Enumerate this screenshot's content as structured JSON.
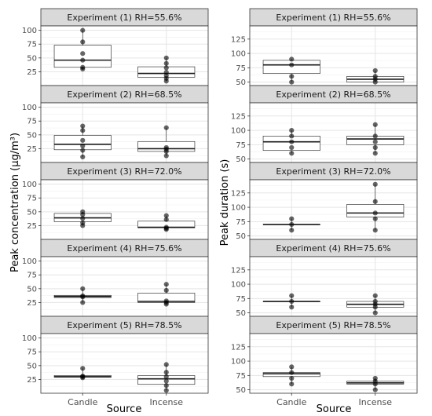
{
  "colors": {
    "strip_fill": "#d9d9d9",
    "strip_border": "#333333",
    "panel_border": "#333333",
    "grid_major": "#e5e5e5",
    "grid_minor": "#f2f2f2",
    "box_stroke": "#1a1a1a",
    "point": "#000000"
  },
  "chart_data": [
    {
      "type": "boxplot",
      "panel_group": "left",
      "ylabel": "Peak concentration (µg/m³)",
      "xlabel": "Source",
      "categories": [
        "Candle",
        "Incense"
      ],
      "ylim": [
        0,
        108
      ],
      "yticks": [
        25,
        50,
        75,
        100
      ],
      "grid": true,
      "facets": [
        {
          "title": "Experiment (1) RH=55.6%",
          "boxes": [
            {
              "category": "Candle",
              "lower": 30,
              "q1": 33,
              "median": 46,
              "q3": 73,
              "upper": 100
            },
            {
              "category": "Incense",
              "lower": 8,
              "q1": 15,
              "median": 22,
              "q3": 34,
              "upper": 50
            }
          ],
          "points": [
            {
              "category": "Candle",
              "values": [
                30,
                33,
                46,
                58,
                79,
                100
              ]
            },
            {
              "category": "Incense",
              "values": [
                8,
                13,
                18,
                24,
                32,
                40,
                50
              ]
            }
          ]
        },
        {
          "title": "Experiment (2) RH=68.5%",
          "boxes": [
            {
              "category": "Candle",
              "lower": 10,
              "q1": 23,
              "median": 33,
              "q3": 49,
              "upper": 66
            },
            {
              "category": "Incense",
              "lower": 12,
              "q1": 20,
              "median": 25,
              "q3": 38,
              "upper": 63
            }
          ],
          "points": [
            {
              "category": "Candle",
              "values": [
                10,
                22,
                30,
                40,
                58,
                66
              ]
            },
            {
              "category": "Incense",
              "values": [
                12,
                20,
                24,
                27,
                63
              ]
            }
          ]
        },
        {
          "title": "Experiment (3) RH=72.0%",
          "boxes": [
            {
              "category": "Candle",
              "lower": 25,
              "q1": 32,
              "median": 39,
              "q3": 47,
              "upper": 50
            },
            {
              "category": "Incense",
              "lower": 18,
              "q1": 21,
              "median": 22,
              "q3": 33,
              "upper": 43
            }
          ],
          "points": [
            {
              "category": "Candle",
              "values": [
                25,
                30,
                38,
                45,
                50
              ]
            },
            {
              "category": "Incense",
              "values": [
                18,
                20,
                22,
                36,
                43
              ]
            }
          ]
        },
        {
          "title": "Experiment (4) RH=75.6%",
          "boxes": [
            {
              "category": "Candle",
              "lower": 25,
              "q1": 34,
              "median": 36,
              "q3": 38,
              "upper": 50
            },
            {
              "category": "Incense",
              "lower": 22,
              "q1": 25,
              "median": 27,
              "q3": 42,
              "upper": 58
            }
          ],
          "points": [
            {
              "category": "Candle",
              "values": [
                25,
                35,
                37,
                50
              ]
            },
            {
              "category": "Incense",
              "values": [
                22,
                25,
                28,
                47,
                58
              ]
            }
          ]
        },
        {
          "title": "Experiment (5) RH=78.5%",
          "boxes": [
            {
              "category": "Candle",
              "lower": 28,
              "q1": 29,
              "median": 30,
              "q3": 32,
              "upper": 45
            },
            {
              "category": "Incense",
              "lower": 5,
              "q1": 16,
              "median": 26,
              "q3": 32,
              "upper": 52
            }
          ],
          "points": [
            {
              "category": "Candle",
              "values": [
                28,
                30,
                31,
                45
              ]
            },
            {
              "category": "Incense",
              "values": [
                5,
                14,
                22,
                30,
                38,
                52
              ]
            }
          ]
        }
      ]
    },
    {
      "type": "boxplot",
      "panel_group": "right",
      "ylabel": "Peak duration (s)",
      "xlabel": "Source",
      "categories": [
        "Candle",
        "Incense"
      ],
      "ylim": [
        44,
        148
      ],
      "yticks": [
        50,
        75,
        100,
        125
      ],
      "grid": true,
      "facets": [
        {
          "title": "Experiment (1) RH=55.6%",
          "boxes": [
            {
              "category": "Candle",
              "lower": 50,
              "q1": 65,
              "median": 80,
              "q3": 88,
              "upper": 90
            },
            {
              "category": "Incense",
              "lower": 50,
              "q1": 50,
              "median": 55,
              "q3": 60,
              "upper": 70
            }
          ],
          "points": [
            {
              "category": "Candle",
              "values": [
                50,
                60,
                80,
                90
              ]
            },
            {
              "category": "Incense",
              "values": [
                50,
                55,
                60,
                70
              ]
            }
          ]
        },
        {
          "title": "Experiment (2) RH=68.5%",
          "boxes": [
            {
              "category": "Candle",
              "lower": 60,
              "q1": 65,
              "median": 80,
              "q3": 90,
              "upper": 100
            },
            {
              "category": "Incense",
              "lower": 60,
              "q1": 75,
              "median": 85,
              "q3": 90,
              "upper": 110
            }
          ],
          "points": [
            {
              "category": "Candle",
              "values": [
                60,
                70,
                80,
                90,
                100
              ]
            },
            {
              "category": "Incense",
              "values": [
                60,
                70,
                80,
                90,
                110
              ]
            }
          ]
        },
        {
          "title": "Experiment (3) RH=72.0%",
          "boxes": [
            {
              "category": "Candle",
              "lower": 60,
              "q1": 70,
              "median": 70,
              "q3": 70,
              "upper": 80
            },
            {
              "category": "Incense",
              "lower": 60,
              "q1": 83,
              "median": 90,
              "q3": 105,
              "upper": 140
            }
          ],
          "points": [
            {
              "category": "Candle",
              "values": [
                60,
                70,
                80
              ]
            },
            {
              "category": "Incense",
              "values": [
                60,
                80,
                90,
                110,
                140
              ]
            }
          ]
        },
        {
          "title": "Experiment (4) RH=75.6%",
          "boxes": [
            {
              "category": "Candle",
              "lower": 60,
              "q1": 70,
              "median": 70,
              "q3": 70,
              "upper": 80
            },
            {
              "category": "Incense",
              "lower": 50,
              "q1": 60,
              "median": 65,
              "q3": 70,
              "upper": 80
            }
          ],
          "points": [
            {
              "category": "Candle",
              "values": [
                60,
                70,
                80
              ]
            },
            {
              "category": "Incense",
              "values": [
                50,
                60,
                65,
                70,
                80
              ]
            }
          ]
        },
        {
          "title": "Experiment (5) RH=78.5%",
          "boxes": [
            {
              "category": "Candle",
              "lower": 60,
              "q1": 73,
              "median": 78,
              "q3": 80,
              "upper": 90
            },
            {
              "category": "Incense",
              "lower": 50,
              "q1": 60,
              "median": 62,
              "q3": 65,
              "upper": 70
            }
          ],
          "points": [
            {
              "category": "Candle",
              "values": [
                60,
                70,
                80,
                90
              ]
            },
            {
              "category": "Incense",
              "values": [
                50,
                60,
                65,
                70
              ]
            }
          ]
        }
      ]
    }
  ]
}
